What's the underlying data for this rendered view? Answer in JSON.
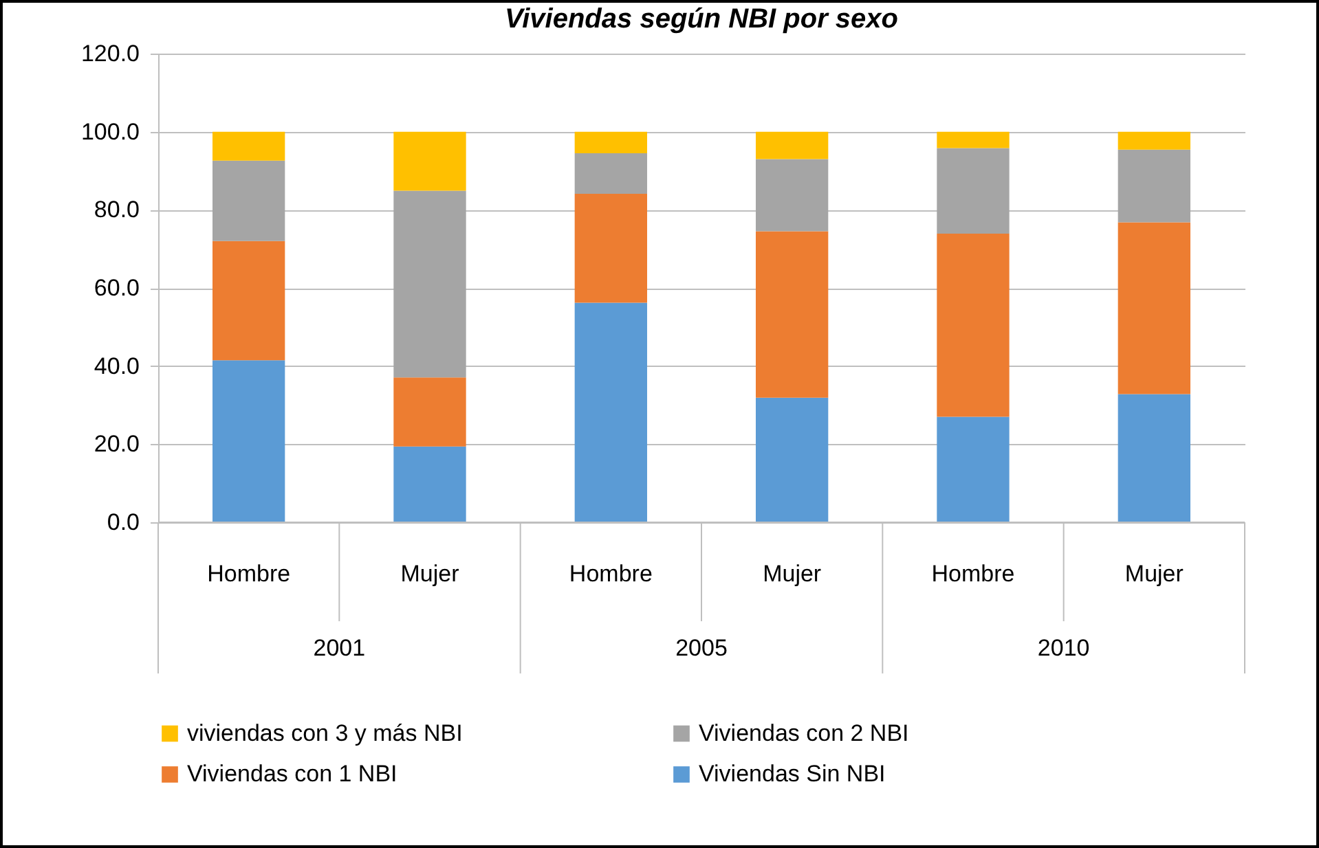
{
  "chart_data": {
    "type": "bar",
    "title": "Viviendas según NBI por sexo",
    "stacked": true,
    "categories": [
      "Hombre",
      "Mujer",
      "Hombre",
      "Mujer",
      "Hombre",
      "Mujer"
    ],
    "annotations": [
      "2001",
      "2005",
      "2010"
    ],
    "series": [
      {
        "name": "Viviendas Sin NBI",
        "color": "#5b9bd5",
        "values": [
          41.5,
          19.4,
          56.2,
          31.9,
          27.0,
          32.8
        ]
      },
      {
        "name": "Viviendas con 1 NBI",
        "color": "#ed7d31",
        "values": [
          30.5,
          17.7,
          27.9,
          42.6,
          46.9,
          44.0
        ]
      },
      {
        "name": "Viviendas con 2 NBI",
        "color": "#a5a5a5",
        "values": [
          20.6,
          47.8,
          10.4,
          18.5,
          21.9,
          18.6
        ]
      },
      {
        "name": "viviendas con 3 y más NBI",
        "color": "#ffc000",
        "values": [
          7.4,
          15.1,
          5.5,
          7.0,
          4.2,
          4.6
        ]
      }
    ],
    "ylim": [
      0,
      120
    ],
    "yticks": [
      {
        "value": 0,
        "label": "0.0"
      },
      {
        "value": 20,
        "label": "20.0"
      },
      {
        "value": 40,
        "label": "40.0"
      },
      {
        "value": 60,
        "label": "60.0"
      },
      {
        "value": 80,
        "label": "80.0"
      },
      {
        "value": 100,
        "label": "100.0"
      },
      {
        "value": 120,
        "label": "120.0"
      }
    ],
    "grid": "y",
    "legend": "bottom"
  }
}
